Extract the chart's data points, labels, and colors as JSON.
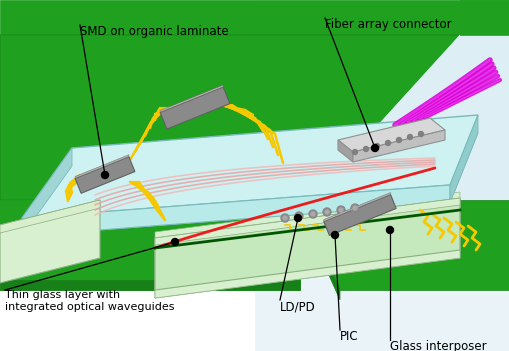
{
  "labels": {
    "smd": "SMD on organic laminate",
    "fiber": "Fiber array connector",
    "thin_glass": "Thin glass layer with\nintegrated optical waveguides",
    "ldpd": "LD/PD",
    "pic": "PIC",
    "glass_interposer": "Glass interposer"
  },
  "colors": {
    "background": "#ffffff",
    "green_pcb": "#1fa01f",
    "green_pcb_dark": "#188018",
    "light_cyan": "#b8eaea",
    "light_cyan2": "#cef2f2",
    "cyan_edge": "#8ccfcf",
    "light_green_sub": "#c5e8bc",
    "light_green_sub2": "#d8f0d0",
    "gray_smd": "#8a8a8a",
    "gray_smd_light": "#b0b0b0",
    "gray_connector": "#c0c0c0",
    "gray_connector_light": "#d8d8d8",
    "yellow_trace": "#f5c800",
    "magenta_fiber": "#dd00dd",
    "magenta_fiber2": "#cc22cc",
    "red_waveguide": "#ee1111",
    "pink_waveguide": "#e8a0a0",
    "pink_waveguide2": "#f0b8b8",
    "white_area": "#eaf4f8",
    "dark_green_line": "#005500"
  },
  "figsize": [
    5.1,
    3.51
  ],
  "dpi": 100
}
